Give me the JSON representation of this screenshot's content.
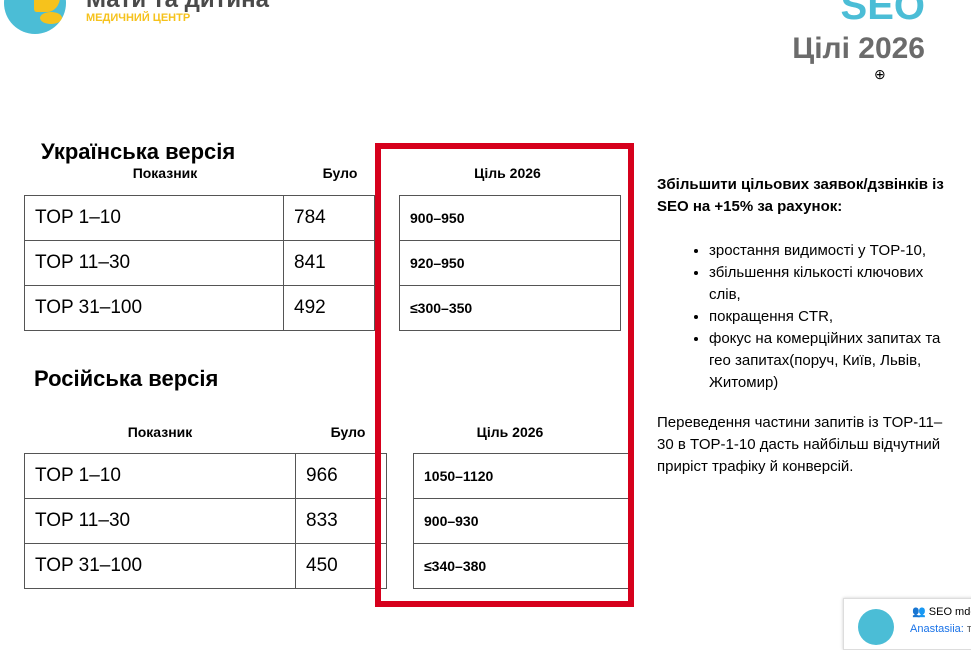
{
  "header": {
    "brand": "Мати та дитина",
    "brand_sub": "МЕДИЧНИЙ ЦЕНТР",
    "seo": "SEO",
    "title": "Цілі 2026"
  },
  "ua": {
    "heading": "Українська версія",
    "cols": [
      "Показник",
      "Було",
      "Ціль 2026"
    ],
    "rows": [
      [
        "TOP 1–10",
        "784",
        "900–950"
      ],
      [
        "TOP 11–30",
        "841",
        "920–950"
      ],
      [
        "TOP 31–100",
        "492",
        "≤300–350"
      ]
    ]
  },
  "ru": {
    "heading": "Російська версія",
    "cols": [
      "Показник",
      "Було",
      "Ціль 2026"
    ],
    "rows": [
      [
        "TOP 1–10",
        "966",
        "1050–1120"
      ],
      [
        "TOP 11–30",
        "833",
        "900–930"
      ],
      [
        "TOP 31–100",
        "450",
        "≤340–380"
      ]
    ]
  },
  "side": {
    "lead": "Збільшити цільових заявок/дзвінків із SEO на +15% за рахунок:",
    "bullets": [
      "зростання видимості у TOP-10,",
      "збільшення кількості ключових слів,",
      "покращення CTR,",
      "фокус на комерційних запитах та гео запитах(поруч, Київ, Львів, Житомир)"
    ],
    "note": "Переведення частини запитів із TOP-11–30 в TOP-1-10 дасть найбільш відчутний приріст трафіку й конверсій."
  },
  "chat": {
    "title": "SEO mdc",
    "sender": "Anastasiia:",
    "preview": "т"
  },
  "colors": {
    "highlight": "#d6001c",
    "brand_blue": "#4bbdd6",
    "brand_yellow": "#f6c21c"
  }
}
